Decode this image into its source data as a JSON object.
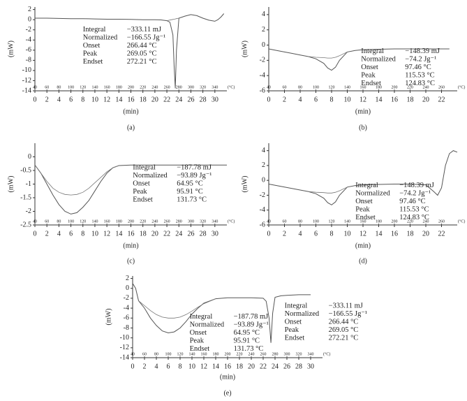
{
  "chart_data": [
    {
      "type": "line",
      "label": "(a)",
      "x_label": "(min)",
      "y_label": "(mW)",
      "xlim": [
        0,
        32
      ],
      "xticks": [
        0,
        2,
        4,
        6,
        8,
        10,
        12,
        14,
        16,
        18,
        20,
        22,
        24,
        26,
        28,
        30
      ],
      "ylim": [
        -14,
        2.5
      ],
      "yticks": [
        2,
        0,
        -2,
        -4,
        -6,
        -8,
        -10,
        -12,
        -14
      ],
      "tlim": [
        40,
        360
      ],
      "temp_ticks": [
        40,
        60,
        80,
        100,
        120,
        140,
        160,
        180,
        200,
        220,
        240,
        260,
        280,
        300,
        320,
        340
      ],
      "temp_unit": "(°C)",
      "x": [
        0,
        2,
        4,
        6,
        8,
        10,
        12,
        14,
        16,
        18,
        20,
        21,
        22,
        22.5,
        23,
        23.2,
        23.4,
        23.6,
        24,
        25,
        26,
        27,
        28,
        29,
        30,
        30.5,
        31,
        31.5
      ],
      "series": [
        {
          "color": "#555555",
          "values": [
            0.3,
            0.3,
            0.25,
            0.2,
            0.2,
            0.15,
            0.1,
            0.1,
            0.05,
            0,
            0,
            -0.05,
            -0.2,
            -0.5,
            -3,
            -9,
            -13.5,
            -6,
            0.3,
            0.7,
            1,
            0.8,
            0.3,
            -0.1,
            -0.3,
            0,
            0.5,
            1.2
          ]
        },
        {
          "color": "#777777",
          "values": [
            null,
            null,
            null,
            null,
            null,
            null,
            null,
            null,
            null,
            null,
            null,
            null,
            -0.2,
            -0.07,
            0.05,
            0.1,
            0.15,
            0.2,
            0.3,
            null,
            null,
            null,
            null,
            null,
            null,
            null,
            null,
            null
          ]
        }
      ],
      "annotations": [
        {
          "labels": [
            "Integral",
            "Normalized",
            "Onset",
            "Peak",
            "Endset"
          ],
          "values": [
            "−333.11 mJ",
            "−166.55 Jg⁻¹",
            "266.44 °C",
            "269.05 °C",
            "272.21 °C"
          ]
        }
      ]
    },
    {
      "type": "line",
      "label": "(b)",
      "x_label": "(min)",
      "y_label": "(mW)",
      "xlim": [
        0,
        24
      ],
      "xticks": [
        0,
        2,
        4,
        6,
        8,
        10,
        12,
        14,
        16,
        18,
        20,
        22
      ],
      "ylim": [
        -6,
        5
      ],
      "yticks": [
        4,
        2,
        0,
        -2,
        -4,
        -6
      ],
      "tlim": [
        40,
        280
      ],
      "temp_ticks": [
        40,
        60,
        80,
        100,
        120,
        140,
        160,
        180,
        200,
        220,
        240,
        260
      ],
      "temp_unit": "(°C)",
      "x": [
        0,
        1,
        2,
        3,
        4,
        5,
        6,
        7,
        7.5,
        8,
        8.5,
        9,
        10,
        11,
        12,
        14,
        16,
        18,
        20,
        22,
        23
      ],
      "series": [
        {
          "color": "#555555",
          "values": [
            -0.5,
            -0.7,
            -0.9,
            -1.1,
            -1.3,
            -1.5,
            -1.8,
            -2.4,
            -3,
            -3.3,
            -2.9,
            -2,
            -0.9,
            -0.7,
            -0.6,
            -0.55,
            -0.5,
            -0.5,
            -0.5,
            -0.5,
            -0.5
          ]
        },
        {
          "color": "#777777",
          "values": [
            null,
            null,
            null,
            null,
            null,
            -1.5,
            -1.6,
            -1.65,
            -1.7,
            -1.7,
            -1.6,
            -1.4,
            -0.9,
            null,
            null,
            null,
            null,
            null,
            null,
            null,
            null
          ]
        }
      ],
      "annotations": [
        {
          "labels": [
            "Integral",
            "Normalized",
            "Onset",
            "Peak",
            "Endset"
          ],
          "values": [
            "−148.39 mJ",
            "−74.2 Jg⁻¹",
            "97.46 °C",
            "115.53 °C",
            "124.83 °C"
          ]
        }
      ]
    },
    {
      "type": "line",
      "label": "(c)",
      "x_label": "(min)",
      "y_label": "(mW)",
      "xlim": [
        0,
        32
      ],
      "xticks": [
        0,
        2,
        4,
        6,
        8,
        10,
        12,
        14,
        16,
        18,
        20,
        22,
        24,
        26,
        28,
        30
      ],
      "ylim": [
        -2.5,
        0.5
      ],
      "yticks": [
        0,
        -0.5,
        -1,
        -1.5,
        -2,
        -2.5
      ],
      "tlim": [
        40,
        360
      ],
      "temp_ticks": [
        40,
        60,
        80,
        100,
        120,
        140,
        160,
        180,
        200,
        220,
        240,
        260,
        280,
        300,
        320,
        340
      ],
      "temp_unit": "(°C)",
      "x": [
        0,
        1,
        2,
        3,
        4,
        5,
        6,
        7,
        8,
        9,
        10,
        11,
        12,
        13,
        14,
        16,
        20,
        24,
        28,
        32
      ],
      "series": [
        {
          "color": "#555555",
          "values": [
            -0.3,
            -0.6,
            -1,
            -1.4,
            -1.75,
            -2,
            -2.1,
            -2.05,
            -1.85,
            -1.6,
            -1.25,
            -0.9,
            -0.6,
            -0.4,
            -0.32,
            -0.3,
            -0.3,
            -0.3,
            -0.3,
            -0.3
          ]
        },
        {
          "color": "#777777",
          "values": [
            -0.3,
            -0.6,
            -0.9,
            -1.15,
            -1.3,
            -1.38,
            -1.4,
            -1.38,
            -1.3,
            -1.15,
            -0.95,
            -0.75,
            -0.55,
            -0.4,
            -0.32,
            null,
            null,
            null,
            null,
            null
          ]
        }
      ],
      "annotations": [
        {
          "labels": [
            "Integral",
            "Normalized",
            "Onset",
            "Peak",
            "Endset"
          ],
          "values": [
            "−187.78 mJ",
            "−93.89 Jg⁻¹",
            "64.95 °C",
            "95.91 °C",
            "131.73 °C"
          ]
        }
      ]
    },
    {
      "type": "line",
      "label": "(d)",
      "x_label": "(min)",
      "y_label": "(mW)",
      "xlim": [
        0,
        24
      ],
      "xticks": [
        0,
        2,
        4,
        6,
        8,
        10,
        12,
        14,
        16,
        18,
        20,
        22
      ],
      "ylim": [
        -6,
        5
      ],
      "yticks": [
        4,
        2,
        0,
        -2,
        -4,
        -6
      ],
      "tlim": [
        40,
        280
      ],
      "temp_ticks": [
        40,
        60,
        80,
        100,
        120,
        140,
        160,
        180,
        200,
        220,
        240,
        260
      ],
      "temp_unit": "(°C)",
      "x": [
        0,
        1,
        2,
        3,
        4,
        5,
        6,
        7,
        7.5,
        8,
        8.5,
        9,
        10,
        11,
        12,
        14,
        16,
        18,
        20,
        21,
        21.5,
        22,
        22.5,
        23,
        23.5,
        24
      ],
      "series": [
        {
          "color": "#555555",
          "values": [
            -0.5,
            -0.7,
            -0.9,
            -1.1,
            -1.3,
            -1.5,
            -1.8,
            -2.4,
            -3,
            -3.3,
            -2.9,
            -2,
            -0.9,
            -0.7,
            -0.6,
            -0.55,
            -0.5,
            -0.5,
            -0.6,
            -1.5,
            -2,
            -1,
            2,
            3.6,
            4,
            3.8
          ]
        },
        {
          "color": "#777777",
          "values": [
            null,
            null,
            null,
            null,
            null,
            -1.5,
            -1.6,
            -1.65,
            -1.7,
            -1.7,
            -1.6,
            -1.4,
            -0.9,
            null,
            null,
            null,
            null,
            null,
            null,
            null,
            null,
            null,
            null,
            null,
            null,
            null
          ]
        }
      ],
      "annotations": [
        {
          "labels": [
            "Integral",
            "Normalized",
            "Onset",
            "Peak",
            "Endset"
          ],
          "values": [
            "−148.39 mJ",
            "−74.2 Jg⁻¹",
            "97.46 °C",
            "115.53 °C",
            "124.83 °C"
          ]
        }
      ]
    },
    {
      "type": "line",
      "label": "(e)",
      "x_label": "(min)",
      "y_label": "(mW)",
      "xlim": [
        0,
        32
      ],
      "xticks": [
        0,
        2,
        4,
        6,
        8,
        10,
        12,
        14,
        16,
        18,
        20,
        22,
        24,
        26,
        28,
        30
      ],
      "ylim": [
        -14,
        2.5
      ],
      "yticks": [
        2,
        0,
        -2,
        -4,
        -6,
        -8,
        -10,
        -12,
        -14
      ],
      "tlim": [
        40,
        360
      ],
      "temp_ticks": [
        40,
        60,
        80,
        100,
        120,
        140,
        160,
        180,
        200,
        220,
        240,
        260,
        280,
        300,
        320,
        340
      ],
      "temp_unit": "(°C)",
      "x": [
        0,
        0.5,
        1,
        2,
        3,
        4,
        5,
        6,
        7,
        8,
        9,
        10,
        11,
        12,
        14,
        16,
        18,
        20,
        22,
        22.5,
        23,
        23.3,
        23.6,
        24,
        25,
        26,
        28,
        30
      ],
      "series": [
        {
          "color": "#555555",
          "values": [
            1,
            0,
            -2.5,
            -4,
            -6,
            -7.5,
            -8.6,
            -9,
            -8.8,
            -8,
            -6.7,
            -5.2,
            -4,
            -3,
            -2.1,
            -1.9,
            -1.9,
            -1.9,
            -2,
            -2.6,
            -6,
            -11,
            -5,
            -1.8,
            -1.5,
            -1.4,
            -1.3,
            -1.3
          ]
        },
        {
          "color": "#777777",
          "values": [
            null,
            null,
            -2.5,
            -3.5,
            -4.5,
            -5.3,
            -5.8,
            -6,
            -6,
            -5.8,
            -5.3,
            -4.6,
            -3.8,
            -3.1,
            -2.1,
            null,
            null,
            null,
            null,
            null,
            null,
            null,
            null,
            null,
            null,
            null,
            null,
            null
          ]
        }
      ],
      "annotations": [
        {
          "labels": [
            "Integral",
            "Normalized",
            "Onset",
            "Peak",
            "Endset"
          ],
          "values": [
            "−187.78 mJ",
            "−93.89 Jg⁻¹",
            "64.95 °C",
            "95.91 °C",
            "131.73 °C"
          ]
        },
        {
          "labels": [
            "Integral",
            "Normalized",
            "Onset",
            "Peak",
            "Endset"
          ],
          "values": [
            "−333.11 mJ",
            "−166.55 Jg⁻¹",
            "266.44 °C",
            "269.05 °C",
            "272.21 °C"
          ]
        }
      ]
    }
  ]
}
